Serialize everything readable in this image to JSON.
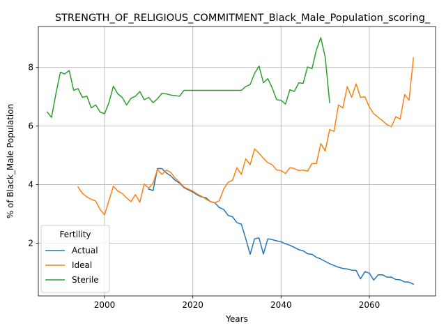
{
  "chart_data": {
    "type": "line",
    "title": "STRENGTH_OF_RELIGIOUS_COMMITMENT_Black_Male_Population_scoring_",
    "xlabel": "Years",
    "ylabel": "% of Black_Male Population",
    "xlim": [
      1985,
      2075
    ],
    "ylim": [
      0.2,
      9.4
    ],
    "xticks": [
      2000,
      2020,
      2040,
      2060
    ],
    "yticks": [
      2,
      4,
      6,
      8
    ],
    "grid": true,
    "legend": {
      "title": "Fertility",
      "position": "lower-left"
    },
    "series": [
      {
        "name": "Actual",
        "color": "#1f77b4",
        "x": [
          2010,
          2011,
          2012,
          2013,
          2014,
          2015,
          2016,
          2017,
          2018,
          2019,
          2020,
          2021,
          2022,
          2023,
          2024,
          2025,
          2026,
          2027,
          2028,
          2029,
          2030,
          2031,
          2032,
          2033,
          2034,
          2035,
          2036,
          2037,
          2038,
          2039,
          2040,
          2041,
          2042,
          2043,
          2044,
          2045,
          2046,
          2047,
          2048,
          2049,
          2050,
          2051,
          2052,
          2053,
          2054,
          2055,
          2056,
          2057,
          2058,
          2059,
          2060,
          2061,
          2062,
          2063,
          2064,
          2065,
          2066,
          2067,
          2068,
          2069,
          2070
        ],
        "values": [
          3.85,
          3.8,
          4.55,
          4.55,
          4.4,
          4.3,
          4.15,
          4.05,
          3.9,
          3.82,
          3.75,
          3.65,
          3.58,
          3.55,
          3.42,
          3.38,
          3.22,
          3.15,
          2.95,
          2.9,
          2.7,
          2.65,
          2.15,
          1.62,
          2.15,
          2.18,
          1.63,
          2.15,
          2.12,
          2.08,
          2.05,
          1.98,
          1.93,
          1.86,
          1.78,
          1.74,
          1.64,
          1.62,
          1.52,
          1.46,
          1.38,
          1.3,
          1.24,
          1.18,
          1.14,
          1.12,
          1.08,
          1.07,
          0.78,
          1.03,
          0.98,
          0.74,
          0.92,
          0.92,
          0.84,
          0.84,
          0.76,
          0.75,
          0.68,
          0.67,
          0.6
        ]
      },
      {
        "name": "Ideal",
        "color": "#ff7f0e",
        "x": [
          1994,
          1995,
          1996,
          1997,
          1998,
          1999,
          2000,
          2001,
          2002,
          2003,
          2004,
          2005,
          2006,
          2007,
          2008,
          2009,
          2010,
          2011,
          2012,
          2013,
          2014,
          2015,
          2016,
          2017,
          2018,
          2019,
          2020,
          2021,
          2022,
          2023,
          2024,
          2025,
          2026,
          2027,
          2028,
          2029,
          2030,
          2031,
          2032,
          2033,
          2034,
          2035,
          2036,
          2037,
          2038,
          2039,
          2040,
          2041,
          2042,
          2043,
          2044,
          2045,
          2046,
          2047,
          2048,
          2049,
          2050,
          2051,
          2052,
          2053,
          2054,
          2055,
          2056,
          2057,
          2058,
          2059,
          2060,
          2061,
          2062,
          2063,
          2064,
          2065,
          2066,
          2067,
          2068,
          2069,
          2070
        ],
        "values": [
          3.92,
          3.7,
          3.58,
          3.5,
          3.44,
          3.15,
          2.97,
          3.45,
          3.95,
          3.78,
          3.7,
          3.55,
          3.42,
          3.66,
          3.4,
          4.02,
          3.88,
          4.05,
          4.52,
          4.35,
          4.5,
          4.42,
          4.22,
          4.08,
          3.92,
          3.85,
          3.78,
          3.68,
          3.6,
          3.5,
          3.42,
          3.38,
          3.45,
          3.85,
          4.08,
          4.15,
          4.58,
          4.35,
          4.88,
          4.68,
          5.22,
          5.08,
          4.9,
          4.75,
          4.68,
          4.5,
          4.48,
          4.38,
          4.58,
          4.55,
          4.48,
          4.5,
          4.46,
          4.72,
          4.72,
          5.4,
          5.15,
          5.88,
          5.82,
          6.72,
          6.62,
          7.35,
          6.98,
          7.44,
          6.98,
          7.0,
          6.65,
          6.42,
          6.3,
          6.18,
          6.05,
          5.98,
          6.32,
          6.24,
          7.08,
          6.88,
          8.33
        ]
      },
      {
        "name": "Sterile",
        "color": "#2ca02c",
        "x": [
          1987,
          1988,
          1989,
          1990,
          1991,
          1992,
          1993,
          1994,
          1995,
          1996,
          1997,
          1998,
          1999,
          2000,
          2001,
          2002,
          2003,
          2004,
          2005,
          2006,
          2007,
          2008,
          2009,
          2010,
          2011,
          2012,
          2013,
          2014,
          2015,
          2016,
          2017,
          2018,
          2019,
          2020,
          2021,
          2022,
          2023,
          2024,
          2025,
          2026,
          2027,
          2028,
          2029,
          2030,
          2031,
          2032,
          2033,
          2034,
          2035,
          2036,
          2037,
          2038,
          2039,
          2040,
          2041,
          2042,
          2043,
          2044,
          2045,
          2046,
          2047,
          2048,
          2049,
          2050,
          2051
        ],
        "values": [
          6.48,
          6.3,
          7.12,
          7.84,
          7.78,
          7.9,
          7.22,
          7.28,
          6.98,
          7.02,
          6.62,
          6.72,
          6.48,
          6.42,
          6.8,
          7.36,
          7.1,
          6.98,
          6.72,
          6.95,
          7.02,
          7.18,
          6.9,
          6.98,
          6.8,
          6.93,
          7.12,
          7.1,
          7.06,
          7.04,
          7.02,
          7.22,
          7.22,
          7.22,
          7.22,
          7.22,
          7.22,
          7.22,
          7.22,
          7.22,
          7.22,
          7.22,
          7.22,
          7.22,
          7.22,
          7.35,
          7.42,
          7.8,
          8.05,
          7.48,
          7.62,
          7.3,
          6.9,
          6.88,
          6.75,
          7.24,
          7.18,
          7.48,
          7.46,
          8.02,
          7.96,
          8.6,
          9.02,
          8.35,
          6.8
        ]
      }
    ]
  }
}
